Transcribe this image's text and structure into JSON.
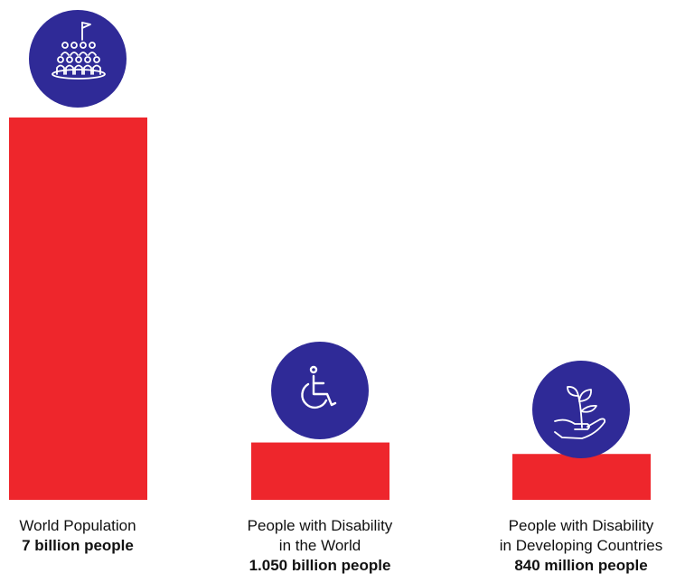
{
  "chart_data": {
    "type": "bar",
    "categories": [
      "World Population",
      "People with Disability in the World",
      "People with Disability in Developing Countries"
    ],
    "values": [
      7000,
      1050,
      840
    ],
    "unit": "million people",
    "value_labels": [
      "7 billion people",
      "1.050 billion people",
      "840 million people"
    ],
    "category_label_lines": [
      [
        "World Population"
      ],
      [
        "People with Disability",
        "in the World"
      ],
      [
        "People with Disability",
        "in Developing Countries"
      ]
    ],
    "icons": [
      "crowd-with-flag-icon",
      "wheelchair-icon",
      "seedling-in-hand-icon"
    ],
    "title": "",
    "xlabel": "",
    "ylabel": "",
    "ylim": [
      0,
      7000
    ],
    "grid": false,
    "legend": "none"
  },
  "colors": {
    "bar": "#ee262c",
    "icon_circle": "#2f2a97",
    "icon_stroke": "#ffffff",
    "text": "#111111"
  }
}
